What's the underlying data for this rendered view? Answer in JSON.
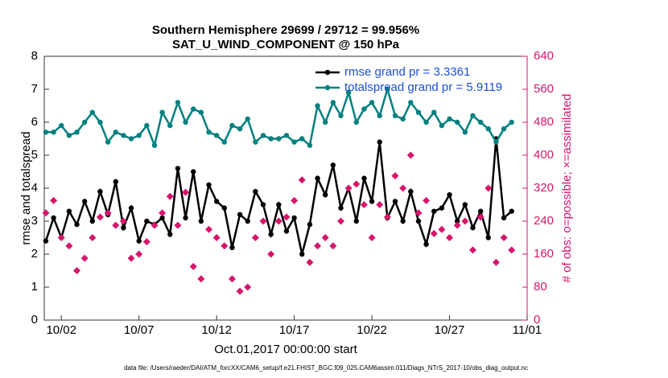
{
  "chart_data": {
    "type": "line",
    "title": "Southern Hemisphere 29699 / 29712 = 99.956%",
    "subtitle": "SAT_U_WIND_COMPONENT @ 150 hPa",
    "xlabel": "Oct.01,2017 00:00:00 start",
    "ylabel": "rmse and totalspread",
    "y2label": "# of obs: o=possible; ×=assimilated",
    "footnote": "data file: /Users/raeder/DAI/ATM_forcXX/CAM6_setup/f.e21.FHIST_BGC.f09_025.CAM6assim.011/Diags_NTrS_2017-10/obs_diag_output.nc",
    "x": [
      1,
      1.5,
      2,
      2.5,
      3,
      3.5,
      4,
      4.5,
      5,
      5.5,
      6,
      6.5,
      7,
      7.5,
      8,
      8.5,
      9,
      9.5,
      10,
      10.5,
      11,
      11.5,
      12,
      12.5,
      13,
      13.5,
      14,
      14.5,
      15,
      15.5,
      16,
      16.5,
      17,
      17.5,
      18,
      18.5,
      19,
      19.5,
      20,
      20.5,
      21,
      21.5,
      22,
      22.5,
      23,
      23.5,
      24,
      24.5,
      25,
      25.5,
      26,
      26.5,
      27,
      27.5,
      28,
      28.5,
      29,
      29.5,
      30,
      30.5,
      31
    ],
    "xlim": [
      0.9,
      32
    ],
    "xticks": [
      {
        "value": 2,
        "label": "10/02"
      },
      {
        "value": 7,
        "label": "10/07"
      },
      {
        "value": 12,
        "label": "10/12"
      },
      {
        "value": 17,
        "label": "10/17"
      },
      {
        "value": 22,
        "label": "10/22"
      },
      {
        "value": 27,
        "label": "10/27"
      },
      {
        "value": 32,
        "label": "11/01"
      }
    ],
    "ylim": [
      0,
      8
    ],
    "yticks": [
      0,
      1,
      2,
      3,
      4,
      5,
      6,
      7,
      8
    ],
    "y2lim": [
      0,
      640
    ],
    "y2ticks": [
      0,
      80,
      160,
      240,
      320,
      400,
      480,
      560,
      640
    ],
    "y2color": "#d6156b",
    "legend_color": "#1a4fd6",
    "series": [
      {
        "name": "rmse grand pr = 3.3361",
        "color": "#000000",
        "values": [
          2.4,
          3.1,
          2.5,
          3.3,
          2.9,
          3.6,
          3.0,
          3.9,
          3.2,
          4.2,
          2.8,
          3.4,
          2.4,
          3.0,
          2.9,
          3.1,
          2.6,
          4.6,
          3.1,
          4.5,
          3.0,
          4.1,
          3.6,
          3.4,
          2.2,
          3.2,
          3.0,
          3.9,
          3.5,
          2.6,
          3.5,
          2.7,
          3.1,
          2.0,
          2.9,
          4.3,
          3.8,
          4.7,
          3.4,
          4.0,
          3.0,
          4.3,
          3.6,
          5.4,
          3.1,
          3.6,
          3.0,
          3.9,
          3.0,
          2.3,
          3.3,
          3.4,
          3.8,
          3.0,
          3.5,
          2.8,
          3.3,
          2.5,
          5.5,
          3.1,
          3.3
        ]
      },
      {
        "name": "totalspread grand pr = 5.9119",
        "color": "#008080",
        "values": [
          5.7,
          5.7,
          5.9,
          5.6,
          5.7,
          6.0,
          6.3,
          6.0,
          5.4,
          5.7,
          5.6,
          5.5,
          5.6,
          5.9,
          5.3,
          6.3,
          5.9,
          6.6,
          6.0,
          6.4,
          6.3,
          5.7,
          5.6,
          5.4,
          5.9,
          5.8,
          6.1,
          5.4,
          5.6,
          5.5,
          5.5,
          5.6,
          5.4,
          5.5,
          5.3,
          6.5,
          6.0,
          6.6,
          6.2,
          6.9,
          6.0,
          6.4,
          6.6,
          6.2,
          7.0,
          6.2,
          6.1,
          6.6,
          6.3,
          6.0,
          6.3,
          5.9,
          6.1,
          6.0,
          5.7,
          6.2,
          6.0,
          5.8,
          5.4,
          5.8,
          6.0
        ]
      },
      {
        "color": "#d6156b",
        "axis": "y2",
        "values": [
          260,
          290,
          200,
          180,
          120,
          150,
          200,
          250,
          260,
          230,
          240,
          150,
          160,
          190,
          230,
          260,
          300,
          230,
          310,
          130,
          100,
          220,
          200,
          180,
          100,
          70,
          80,
          200,
          240,
          160,
          240,
          250,
          290,
          340,
          140,
          180,
          200,
          180,
          240,
          320,
          330,
          280,
          200,
          280,
          250,
          350,
          320,
          400,
          260,
          290,
          210,
          220,
          200,
          230,
          240,
          170,
          250,
          320,
          140,
          200,
          170
        ]
      }
    ]
  }
}
